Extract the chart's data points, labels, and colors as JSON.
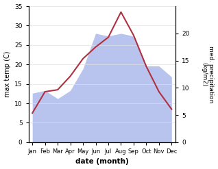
{
  "months": [
    "Jan",
    "Feb",
    "Mar",
    "Apr",
    "May",
    "Jun",
    "Jul",
    "Aug",
    "Sep",
    "Oct",
    "Nov",
    "Dec"
  ],
  "max_temp": [
    7.5,
    13.0,
    13.5,
    17.0,
    21.5,
    24.5,
    27.0,
    33.5,
    27.5,
    19.5,
    13.0,
    8.5
  ],
  "precipitation": [
    9.0,
    9.5,
    8.0,
    9.5,
    13.5,
    20.0,
    19.5,
    20.0,
    19.5,
    14.0,
    14.0,
    12.0
  ],
  "temp_ylim": [
    0,
    35
  ],
  "precip_ylim": [
    0,
    25
  ],
  "precip_right_ticks": [
    0,
    5,
    10,
    15,
    20
  ],
  "temp_color": "#b03040",
  "precip_fill_color": "#b8c4ee",
  "xlabel": "date (month)",
  "ylabel_left": "max temp (C)",
  "ylabel_right": "med. precipitation\n(kg/m2)",
  "bg_color": "#ffffff",
  "grid_color": "#e0e0e0"
}
